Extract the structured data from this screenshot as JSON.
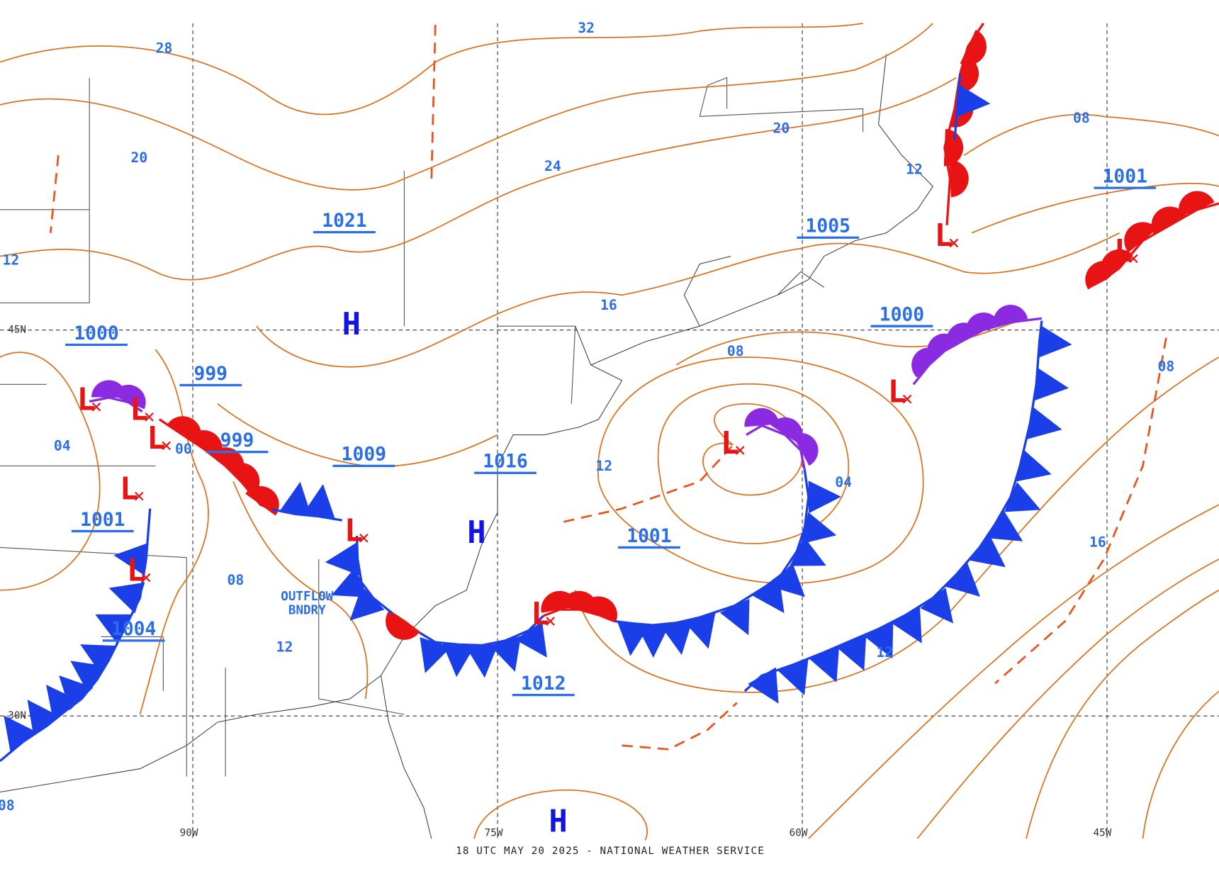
{
  "map": {
    "footer": "18 UTC MAY 20 2025 - NATIONAL WEATHER SERVICE",
    "lon_labels": [
      "90W",
      "75W",
      "60W",
      "45W"
    ],
    "lat_labels": [
      "45N",
      "30N"
    ],
    "pressure_centers": [
      "1021",
      "1000",
      "999",
      "999",
      "1009",
      "1016",
      "1001",
      "1004",
      "1001",
      "1012",
      "1000",
      "1005",
      "1001"
    ],
    "isobar_labels": [
      "32",
      "28",
      "20",
      "24",
      "20",
      "08",
      "12",
      "16",
      "08",
      "12",
      "04",
      "00",
      "08",
      "12",
      "12",
      "04",
      "08",
      "16",
      "12",
      "08"
    ],
    "highs": [
      "H",
      "H",
      "H"
    ],
    "lows": [
      "L",
      "L",
      "L",
      "L",
      "L",
      "L",
      "L",
      "L",
      "L",
      "L",
      "L"
    ],
    "annotation": [
      "OUTFLOW",
      "BNDRY"
    ]
  }
}
